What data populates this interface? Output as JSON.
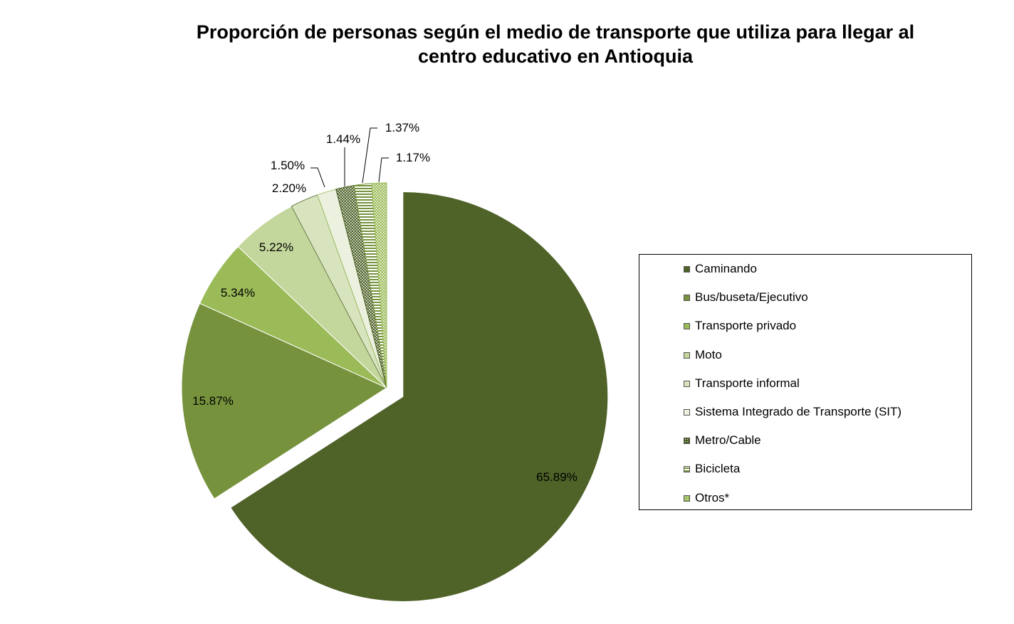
{
  "chart_data": {
    "type": "pie",
    "title_lines": [
      "Proporción de personas según el  medio de transporte que utiliza para llegar al",
      "centro educativo en Antioquia"
    ],
    "legend_position": "right",
    "slices": [
      {
        "name": "Caminando",
        "value": 65.89,
        "label": "65.89%",
        "color": "#4f6228",
        "pattern": "solid",
        "exploded": true
      },
      {
        "name": "Bus/buseta/Ejecutivo",
        "value": 15.87,
        "label": "15.87%",
        "color": "#76923c",
        "pattern": "solid",
        "exploded": false
      },
      {
        "name": "Transporte privado",
        "value": 5.34,
        "label": "5.34%",
        "color": "#9bbb59",
        "pattern": "solid",
        "exploded": false
      },
      {
        "name": "Moto",
        "value": 5.22,
        "label": "5.22%",
        "color": "#c3d69b",
        "pattern": "solid",
        "exploded": false
      },
      {
        "name": "Transporte informal",
        "value": 2.2,
        "label": "2.20%",
        "color": "#d7e4bd",
        "pattern": "solid",
        "exploded": false
      },
      {
        "name": "Sistema Integrado de Transporte (SIT)",
        "value": 1.5,
        "label": "1.50%",
        "color": "#ebf1de",
        "pattern": "solid",
        "exploded": false
      },
      {
        "name": "Metro/Cable",
        "value": 1.44,
        "label": "1.44%",
        "color": "#4f6228",
        "pattern": "dots",
        "exploded": false
      },
      {
        "name": "Bicicleta",
        "value": 1.37,
        "label": "1.37%",
        "color": "#76923c",
        "pattern": "stripes",
        "exploded": false
      },
      {
        "name": "Otros*",
        "value": 1.17,
        "label": "1.17%",
        "color": "#9bbb59",
        "pattern": "dots",
        "exploded": false
      }
    ]
  }
}
